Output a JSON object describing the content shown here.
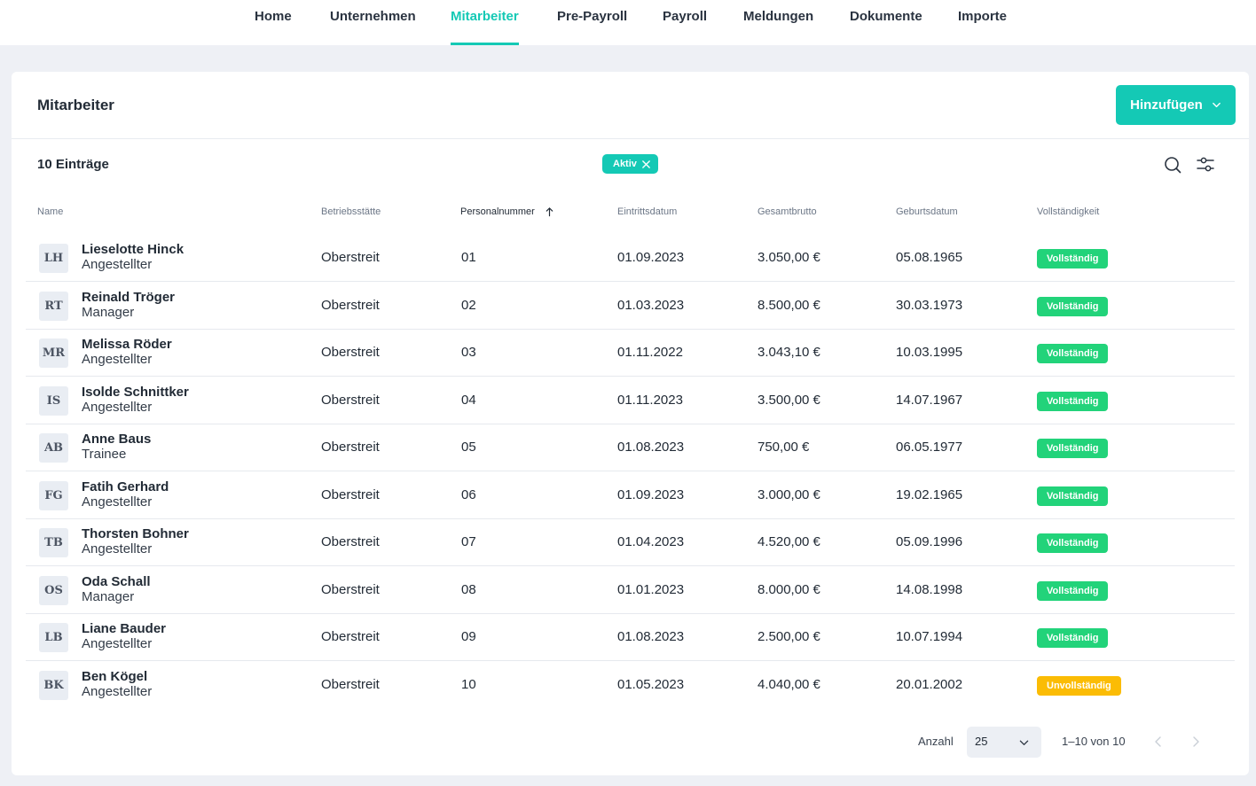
{
  "nav": {
    "tabs": [
      {
        "label": "Home"
      },
      {
        "label": "Unternehmen"
      },
      {
        "label": "Mitarbeiter"
      },
      {
        "label": "Pre-Payroll"
      },
      {
        "label": "Payroll"
      },
      {
        "label": "Meldungen"
      },
      {
        "label": "Dokumente"
      },
      {
        "label": "Importe"
      }
    ],
    "active_tab": "Mitarbeiter"
  },
  "page": {
    "title": "Mitarbeiter",
    "add_button_label": "Hinzufügen",
    "entries_count": "10 Einträge",
    "filter_chip_label": "Aktiv"
  },
  "table": {
    "columns": [
      "Name",
      "Betriebsstätte",
      "Personalnummer",
      "Eintrittsdatum",
      "Gesamtbrutto",
      "Geburtsdatum",
      "Vollständigkeit"
    ],
    "sorted_column": "Personalnummer",
    "rows": [
      {
        "initials": "LH",
        "name": "Lieselotte Hinck",
        "role": "Angestellter",
        "site": "Oberstreit",
        "number": "01",
        "entry": "01.09.2023",
        "gross": "3.050,00 €",
        "birth": "05.08.1965",
        "status": "Vollständig"
      },
      {
        "initials": "RT",
        "name": "Reinald Tröger",
        "role": "Manager",
        "site": "Oberstreit",
        "number": "02",
        "entry": "01.03.2023",
        "gross": "8.500,00 €",
        "birth": "30.03.1973",
        "status": "Vollständig"
      },
      {
        "initials": "MR",
        "name": "Melissa Röder",
        "role": "Angestellter",
        "site": "Oberstreit",
        "number": "03",
        "entry": "01.11.2022",
        "gross": "3.043,10 €",
        "birth": "10.03.1995",
        "status": "Vollständig"
      },
      {
        "initials": "IS",
        "name": "Isolde Schnittker",
        "role": "Angestellter",
        "site": "Oberstreit",
        "number": "04",
        "entry": "01.11.2023",
        "gross": "3.500,00 €",
        "birth": "14.07.1967",
        "status": "Vollständig"
      },
      {
        "initials": "AB",
        "name": "Anne Baus",
        "role": "Trainee",
        "site": "Oberstreit",
        "number": "05",
        "entry": "01.08.2023",
        "gross": "750,00 €",
        "birth": "06.05.1977",
        "status": "Vollständig"
      },
      {
        "initials": "FG",
        "name": "Fatih Gerhard",
        "role": "Angestellter",
        "site": "Oberstreit",
        "number": "06",
        "entry": "01.09.2023",
        "gross": "3.000,00 €",
        "birth": "19.02.1965",
        "status": "Vollständig"
      },
      {
        "initials": "TB",
        "name": "Thorsten Bohner",
        "role": "Angestellter",
        "site": "Oberstreit",
        "number": "07",
        "entry": "01.04.2023",
        "gross": "4.520,00 €",
        "birth": "05.09.1996",
        "status": "Vollständig"
      },
      {
        "initials": "OS",
        "name": "Oda Schall",
        "role": "Manager",
        "site": "Oberstreit",
        "number": "08",
        "entry": "01.01.2023",
        "gross": "8.000,00 €",
        "birth": "14.08.1998",
        "status": "Vollständig"
      },
      {
        "initials": "LB",
        "name": "Liane Bauder",
        "role": "Angestellter",
        "site": "Oberstreit",
        "number": "09",
        "entry": "01.08.2023",
        "gross": "2.500,00 €",
        "birth": "10.07.1994",
        "status": "Vollständig"
      },
      {
        "initials": "BK",
        "name": "Ben Kögel",
        "role": "Angestellter",
        "site": "Oberstreit",
        "number": "10",
        "entry": "01.05.2023",
        "gross": "4.040,00 €",
        "birth": "20.01.2002",
        "status": "Unvollständig"
      }
    ]
  },
  "pagination": {
    "page_size_label": "Anzahl",
    "page_size_value": "25",
    "range_text": "1–10 von 10"
  },
  "colors": {
    "accent": "#14c9b5",
    "status_complete": "#22d37a",
    "status_incomplete": "#fbbc05"
  },
  "icons": {
    "search": "search-icon",
    "filter": "sliders-icon",
    "sort": "arrow-up-icon",
    "chip_remove": "close-icon",
    "add_dropdown": "chevron-down-icon",
    "prev": "chevron-left-icon",
    "next": "chevron-right-icon"
  }
}
